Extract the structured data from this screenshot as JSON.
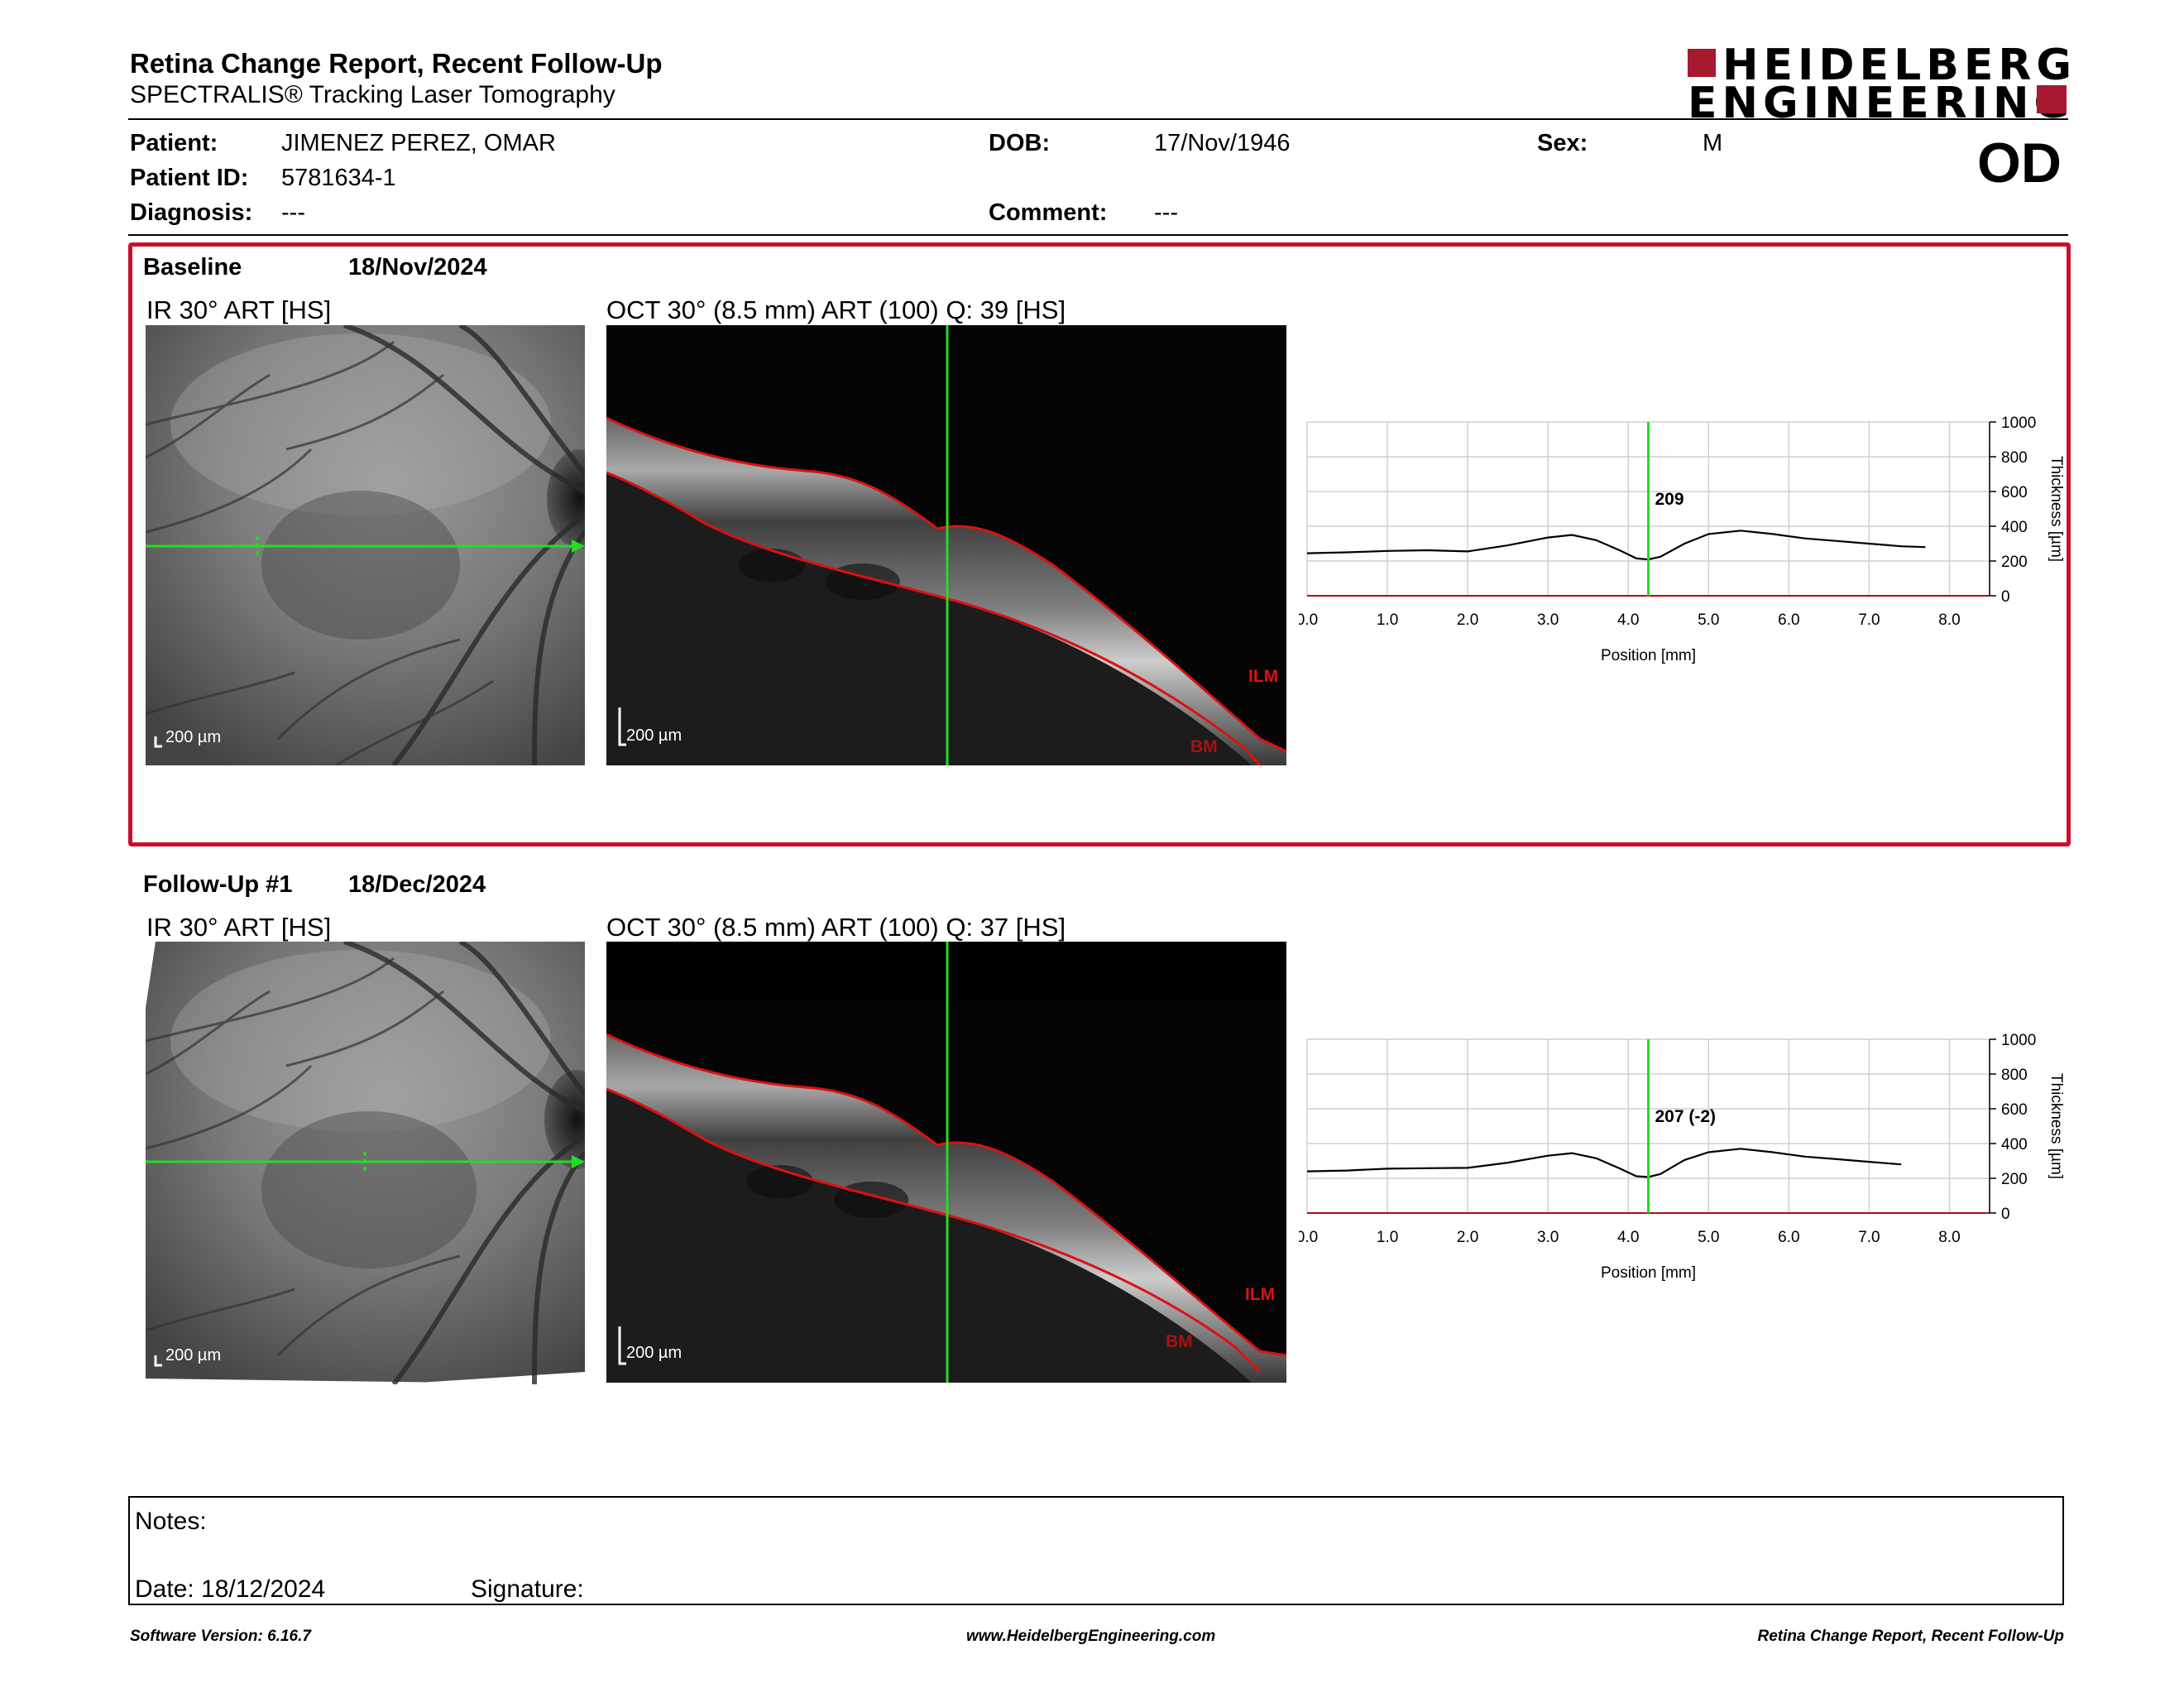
{
  "header": {
    "title": "Retina Change Report, Recent Follow-Up",
    "subtitle": "SPECTRALIS® Tracking Laser Tomography",
    "logo_line1": "HEIDELBERG",
    "logo_line2": "ENGINEERING"
  },
  "patient": {
    "name_label": "Patient:",
    "name": "JIMENEZ PEREZ, OMAR",
    "id_label": "Patient ID:",
    "id": "5781634-1",
    "diagnosis_label": "Diagnosis:",
    "diagnosis": "---",
    "dob_label": "DOB:",
    "dob": "17/Nov/1946",
    "comment_label": "Comment:",
    "comment": "---",
    "sex_label": "Sex:",
    "sex": "M",
    "eye": "OD"
  },
  "colors": {
    "accent": "#c8102e",
    "scan_line": "#22dd22",
    "segmentation": "#dd1111"
  },
  "sections": [
    {
      "label": "Baseline",
      "date": "18/Nov/2024",
      "ir_title": "IR 30° ART [HS]",
      "oct_title": "OCT 30° (8.5 mm) ART (100) Q: 39 [HS]",
      "scale_bar": "200 µm",
      "layer_top": "ILM",
      "layer_bottom": "BM",
      "marker_value": "209"
    },
    {
      "label": "Follow-Up #1",
      "date": "18/Dec/2024",
      "ir_title": "IR 30° ART [HS]",
      "oct_title": "OCT 30° (8.5 mm) ART (100) Q: 37 [HS]",
      "scale_bar": "200 µm",
      "layer_top": "ILM",
      "layer_bottom": "BM",
      "marker_value": "207 (-2)"
    }
  ],
  "chart_data": [
    {
      "type": "line",
      "xlabel": "Position [mm]",
      "ylabel": "Thickness [µm]",
      "xlim": [
        0,
        8.5
      ],
      "ylim": [
        0,
        1000
      ],
      "xticks": [
        "0.0",
        "1.0",
        "2.0",
        "3.0",
        "4.0",
        "5.0",
        "6.0",
        "7.0",
        "8.0"
      ],
      "yticks": [
        "0",
        "200",
        "400",
        "600",
        "800",
        "1000"
      ],
      "marker_x": 4.25,
      "marker_label": "209",
      "grid": true,
      "x": [
        0.0,
        0.5,
        1.0,
        1.5,
        2.0,
        2.5,
        3.0,
        3.3,
        3.6,
        3.9,
        4.1,
        4.25,
        4.4,
        4.7,
        5.0,
        5.4,
        5.8,
        6.2,
        6.6,
        7.0,
        7.4,
        7.7
      ],
      "y": [
        245,
        250,
        258,
        262,
        255,
        290,
        335,
        350,
        320,
        260,
        215,
        209,
        225,
        300,
        355,
        375,
        355,
        330,
        315,
        300,
        285,
        280
      ]
    },
    {
      "type": "line",
      "xlabel": "Position [mm]",
      "ylabel": "Thickness [µm]",
      "xlim": [
        0,
        8.5
      ],
      "ylim": [
        0,
        1000
      ],
      "xticks": [
        "0.0",
        "1.0",
        "2.0",
        "3.0",
        "4.0",
        "5.0",
        "6.0",
        "7.0",
        "8.0"
      ],
      "yticks": [
        "0",
        "200",
        "400",
        "600",
        "800",
        "1000"
      ],
      "marker_x": 4.25,
      "marker_label": "207 (-2)",
      "grid": true,
      "x": [
        0.0,
        0.5,
        1.0,
        1.5,
        2.0,
        2.5,
        3.0,
        3.3,
        3.6,
        3.9,
        4.1,
        4.25,
        4.4,
        4.7,
        5.0,
        5.4,
        5.8,
        6.2,
        6.6,
        7.0,
        7.4
      ],
      "y": [
        240,
        245,
        255,
        258,
        260,
        290,
        330,
        345,
        315,
        255,
        212,
        207,
        225,
        305,
        350,
        370,
        350,
        325,
        310,
        295,
        280
      ]
    }
  ],
  "notes": {
    "notes_label": "Notes:",
    "date_label": "Date: 18/12/2024",
    "signature_label": "Signature:"
  },
  "footer": {
    "version": "Software Version: 6.16.7",
    "website": "www.HeidelbergEngineering.com",
    "report_name": "Retina Change Report, Recent Follow-Up"
  }
}
